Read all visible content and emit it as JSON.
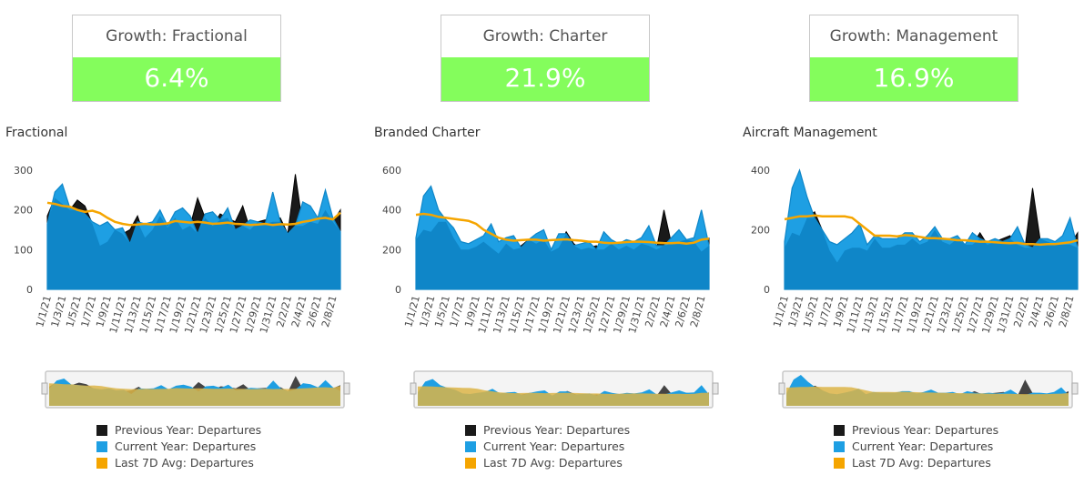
{
  "colors": {
    "previous": "#1a1a1a",
    "current": "#1e9fe3",
    "current_dark": "#0f86c8",
    "avg": "#f5a500",
    "kpi_bg": "#84fd5c"
  },
  "legend": {
    "previous": "Previous Year: Departures",
    "current": "Current Year: Departures",
    "avg": "Last 7D Avg: Departures"
  },
  "panels": [
    {
      "kpi": {
        "title": "Growth: Fractional",
        "value": "6.4%"
      },
      "chart_title": "Fractional"
    },
    {
      "kpi": {
        "title": "Growth: Charter",
        "value": "21.9%"
      },
      "chart_title": "Branded Charter"
    },
    {
      "kpi": {
        "title": "Growth: Management",
        "value": "16.9%"
      },
      "chart_title": "Aircraft Management"
    }
  ],
  "chart_data": [
    {
      "type": "area",
      "title": "Fractional",
      "x": [
        "1/1/21",
        "1/2/21",
        "1/3/21",
        "1/4/21",
        "1/5/21",
        "1/6/21",
        "1/7/21",
        "1/8/21",
        "1/9/21",
        "1/10/21",
        "1/11/21",
        "1/12/21",
        "1/13/21",
        "1/14/21",
        "1/15/21",
        "1/16/21",
        "1/17/21",
        "1/18/21",
        "1/19/21",
        "1/20/21",
        "1/21/21",
        "1/22/21",
        "1/23/21",
        "1/24/21",
        "1/25/21",
        "1/26/21",
        "1/27/21",
        "1/28/21",
        "1/29/21",
        "1/30/21",
        "1/31/21",
        "2/1/21",
        "2/2/21",
        "2/3/21",
        "2/4/21",
        "2/5/21",
        "2/6/21",
        "2/7/21",
        "2/8/21",
        "2/9/21"
      ],
      "x_tick_labels": [
        "1/1/21",
        "1/3/21",
        "1/5/21",
        "1/7/21",
        "1/9/21",
        "1/11/21",
        "1/13/21",
        "1/15/21",
        "1/17/21",
        "1/19/21",
        "1/21/21",
        "1/23/21",
        "1/25/21",
        "1/27/21",
        "1/29/21",
        "1/31/21",
        "2/2/21",
        "2/4/21",
        "2/6/21",
        "2/8/21"
      ],
      "ylim": [
        0,
        300
      ],
      "y_ticks": [
        0,
        100,
        200,
        300
      ],
      "series": [
        {
          "name": "Previous Year: Departures",
          "values": [
            185,
            230,
            215,
            200,
            225,
            210,
            165,
            110,
            120,
            150,
            140,
            150,
            185,
            130,
            150,
            185,
            155,
            180,
            150,
            160,
            230,
            180,
            160,
            190,
            180,
            170,
            210,
            150,
            170,
            175,
            170,
            180,
            140,
            290,
            160,
            170,
            165,
            200,
            170,
            200
          ]
        },
        {
          "name": "Current Year: Departures",
          "values": [
            165,
            245,
            265,
            205,
            200,
            190,
            170,
            160,
            170,
            150,
            155,
            115,
            170,
            165,
            170,
            200,
            160,
            195,
            205,
            185,
            140,
            190,
            195,
            175,
            205,
            150,
            160,
            175,
            170,
            165,
            245,
            170,
            140,
            160,
            220,
            210,
            180,
            250,
            180,
            145
          ]
        },
        {
          "name": "Last 7D Avg: Departures",
          "values": [
            218,
            215,
            210,
            208,
            200,
            195,
            198,
            192,
            180,
            170,
            165,
            162,
            163,
            165,
            163,
            164,
            166,
            172,
            170,
            168,
            170,
            168,
            165,
            166,
            168,
            165,
            164,
            162,
            163,
            165,
            162,
            164,
            163,
            165,
            170,
            173,
            178,
            180,
            176,
            193
          ]
        }
      ]
    },
    {
      "type": "area",
      "title": "Branded Charter",
      "x": [
        "1/1/21",
        "1/2/21",
        "1/3/21",
        "1/4/21",
        "1/5/21",
        "1/6/21",
        "1/7/21",
        "1/8/21",
        "1/9/21",
        "1/10/21",
        "1/11/21",
        "1/12/21",
        "1/13/21",
        "1/14/21",
        "1/15/21",
        "1/16/21",
        "1/17/21",
        "1/18/21",
        "1/19/21",
        "1/20/21",
        "1/21/21",
        "1/22/21",
        "1/23/21",
        "1/24/21",
        "1/25/21",
        "1/26/21",
        "1/27/21",
        "1/28/21",
        "1/29/21",
        "1/30/21",
        "1/31/21",
        "2/1/21",
        "2/2/21",
        "2/3/21",
        "2/4/21",
        "2/5/21",
        "2/6/21",
        "2/7/21",
        "2/8/21",
        "2/9/21"
      ],
      "x_tick_labels": [
        "1/1/21",
        "1/3/21",
        "1/5/21",
        "1/7/21",
        "1/9/21",
        "1/11/21",
        "1/13/21",
        "1/15/21",
        "1/17/21",
        "1/19/21",
        "1/21/21",
        "1/23/21",
        "1/25/21",
        "1/27/21",
        "1/29/21",
        "1/31/21",
        "2/2/21",
        "2/4/21",
        "2/6/21",
        "2/8/21"
      ],
      "ylim": [
        0,
        600
      ],
      "y_ticks": [
        0,
        200,
        400,
        600
      ],
      "series": [
        {
          "name": "Previous Year: Departures",
          "values": [
            250,
            300,
            290,
            340,
            340,
            260,
            200,
            200,
            215,
            240,
            210,
            180,
            230,
            200,
            220,
            250,
            230,
            250,
            190,
            210,
            290,
            230,
            200,
            210,
            220,
            200,
            230,
            200,
            220,
            200,
            230,
            220,
            200,
            400,
            230,
            240,
            250,
            240,
            190,
            260
          ]
        },
        {
          "name": "Current Year: Departures",
          "values": [
            260,
            470,
            520,
            400,
            350,
            310,
            240,
            230,
            250,
            270,
            330,
            240,
            260,
            270,
            210,
            250,
            280,
            300,
            200,
            280,
            280,
            220,
            230,
            240,
            200,
            290,
            250,
            230,
            250,
            240,
            260,
            320,
            220,
            220,
            260,
            300,
            250,
            260,
            400,
            220
          ]
        },
        {
          "name": "Last 7D Avg: Departures",
          "values": [
            375,
            380,
            375,
            365,
            360,
            355,
            350,
            345,
            330,
            300,
            280,
            260,
            250,
            245,
            248,
            250,
            250,
            245,
            248,
            250,
            252,
            248,
            245,
            240,
            240,
            235,
            232,
            235,
            238,
            240,
            240,
            238,
            235,
            233,
            232,
            235,
            230,
            235,
            250,
            255
          ]
        }
      ]
    },
    {
      "type": "area",
      "title": "Aircraft Management",
      "x": [
        "1/1/21",
        "1/2/21",
        "1/3/21",
        "1/4/21",
        "1/5/21",
        "1/6/21",
        "1/7/21",
        "1/8/21",
        "1/9/21",
        "1/10/21",
        "1/11/21",
        "1/12/21",
        "1/13/21",
        "1/14/21",
        "1/15/21",
        "1/16/21",
        "1/17/21",
        "1/18/21",
        "1/19/21",
        "1/20/21",
        "1/21/21",
        "1/22/21",
        "1/23/21",
        "1/24/21",
        "1/25/21",
        "1/26/21",
        "1/27/21",
        "1/28/21",
        "1/29/21",
        "1/30/21",
        "1/31/21",
        "2/1/21",
        "2/2/21",
        "2/3/21",
        "2/4/21",
        "2/5/21",
        "2/6/21",
        "2/7/21",
        "2/8/21",
        "2/9/21"
      ],
      "x_tick_labels": [
        "1/1/21",
        "1/3/21",
        "1/5/21",
        "1/7/21",
        "1/9/21",
        "1/11/21",
        "1/13/21",
        "1/15/21",
        "1/17/21",
        "1/19/21",
        "1/21/21",
        "1/23/21",
        "1/25/21",
        "1/27/21",
        "1/29/21",
        "1/31/21",
        "2/2/21",
        "2/4/21",
        "2/6/21",
        "2/8/21"
      ],
      "ylim": [
        0,
        400
      ],
      "y_ticks": [
        0,
        200,
        400
      ],
      "series": [
        {
          "name": "Previous Year: Departures",
          "values": [
            140,
            190,
            180,
            240,
            260,
            200,
            130,
            90,
            130,
            140,
            140,
            130,
            170,
            140,
            140,
            150,
            150,
            170,
            150,
            160,
            200,
            160,
            150,
            170,
            150,
            150,
            190,
            150,
            160,
            170,
            180,
            150,
            140,
            340,
            170,
            160,
            150,
            150,
            150,
            190
          ]
        },
        {
          "name": "Current Year: Departures",
          "values": [
            160,
            340,
            400,
            310,
            240,
            200,
            160,
            150,
            170,
            190,
            220,
            150,
            180,
            170,
            170,
            170,
            190,
            190,
            160,
            180,
            210,
            170,
            170,
            180,
            150,
            190,
            170,
            160,
            170,
            160,
            170,
            210,
            150,
            140,
            170,
            170,
            160,
            180,
            240,
            140
          ]
        },
        {
          "name": "Last 7D Avg: Departures",
          "values": [
            235,
            240,
            245,
            245,
            248,
            245,
            245,
            245,
            245,
            240,
            220,
            200,
            180,
            180,
            180,
            178,
            182,
            180,
            176,
            172,
            172,
            170,
            168,
            165,
            165,
            162,
            160,
            160,
            158,
            156,
            155,
            156,
            152,
            152,
            150,
            152,
            152,
            155,
            158,
            165
          ]
        }
      ]
    }
  ]
}
